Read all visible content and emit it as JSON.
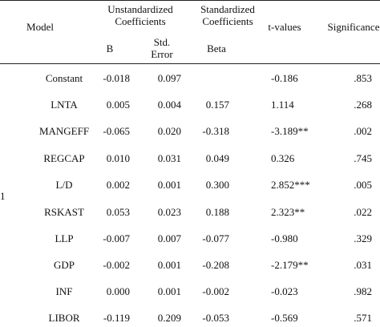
{
  "headers": {
    "model": "Model",
    "unstandardized_line1": "Unstandardized",
    "unstandardized_line2": "Coefficients",
    "standardized_line1": "Standardized",
    "standardized_line2": "Coefficients",
    "t_values": "t-values",
    "significance": "Significance",
    "b": "B",
    "std_error_line1": "Std.",
    "std_error_line2": "Error",
    "beta": "Beta"
  },
  "model_index": "1",
  "rows": [
    {
      "variable": "Constant",
      "b": "-0.018",
      "std_error": "0.097",
      "beta": "",
      "t": "-0.186",
      "sig": ".853"
    },
    {
      "variable": "LNTA",
      "b": "0.005",
      "std_error": "0.004",
      "beta": "0.157",
      "t": "1.114",
      "sig": ".268"
    },
    {
      "variable": "MANGEFF",
      "b": "-0.065",
      "std_error": "0.020",
      "beta": "-0.318",
      "t": "-3.189**",
      "sig": ".002"
    },
    {
      "variable": "REGCAP",
      "b": "0.010",
      "std_error": "0.031",
      "beta": "0.049",
      "t": "0.326",
      "sig": ".745"
    },
    {
      "variable": "L/D",
      "b": "0.002",
      "std_error": "0.001",
      "beta": "0.300",
      "t": "2.852***",
      "sig": ".005"
    },
    {
      "variable": "RSKAST",
      "b": "0.053",
      "std_error": "0.023",
      "beta": "0.188",
      "t": "2.323**",
      "sig": ".022"
    },
    {
      "variable": "LLP",
      "b": "-0.007",
      "std_error": "0.007",
      "beta": "-0.077",
      "t": "-0.980",
      "sig": ".329"
    },
    {
      "variable": "GDP",
      "b": "-0.002",
      "std_error": "0.001",
      "beta": "-0.208",
      "t": "-2.179**",
      "sig": ".031"
    },
    {
      "variable": "INF",
      "b": "0.000",
      "std_error": "0.001",
      "beta": "-0.002",
      "t": "-0.023",
      "sig": ".982"
    },
    {
      "variable": "LIBOR",
      "b": "-0.119",
      "std_error": "0.209",
      "beta": "-0.053",
      "t": "-0.569",
      "sig": ".571"
    }
  ]
}
